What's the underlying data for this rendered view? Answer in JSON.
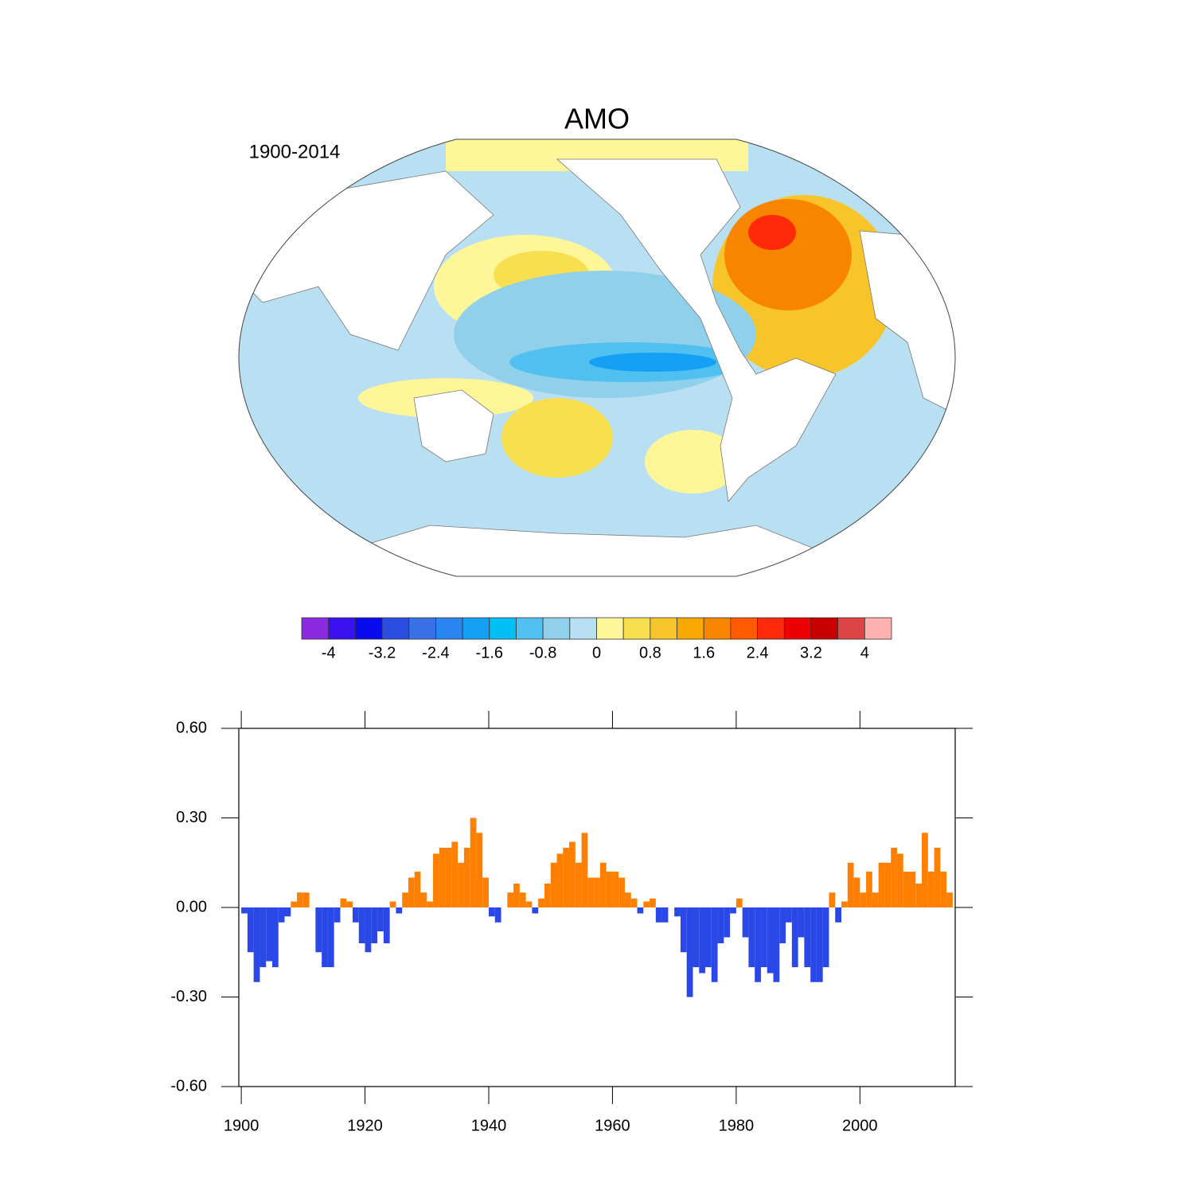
{
  "chart_data": [
    {
      "type": "map",
      "title": "AMO",
      "subtitle": "1900-2014",
      "colorbar": {
        "lim": [
          -4.4,
          4.4
        ],
        "ticks": [
          -4,
          -3.2,
          -2.4,
          -1.6,
          -0.8,
          0,
          0.8,
          1.6,
          2.4,
          3.2,
          4
        ],
        "colors": [
          "#8a2be2",
          "#3a10f0",
          "#0a0aef",
          "#2a4fe0",
          "#3a70e5",
          "#2a85f0",
          "#15a0f5",
          "#00c0f5",
          "#50c0f0",
          "#90d0ea",
          "#b8e0f2",
          "#fff599",
          "#f7df50",
          "#f7c52a",
          "#f8a800",
          "#f78500",
          "#ff5a00",
          "#ff2a0a",
          "#ee0000",
          "#c80000",
          "#dd4444",
          "#ffb0b0"
        ]
      }
    },
    {
      "type": "bar",
      "x": [
        1900,
        1901,
        1902,
        1903,
        1904,
        1905,
        1906,
        1907,
        1908,
        1909,
        1910,
        1911,
        1912,
        1913,
        1914,
        1915,
        1916,
        1917,
        1918,
        1919,
        1920,
        1921,
        1922,
        1923,
        1924,
        1925,
        1926,
        1927,
        1928,
        1929,
        1930,
        1931,
        1932,
        1933,
        1934,
        1935,
        1936,
        1937,
        1938,
        1939,
        1940,
        1941,
        1942,
        1943,
        1944,
        1945,
        1946,
        1947,
        1948,
        1949,
        1950,
        1951,
        1952,
        1953,
        1954,
        1955,
        1956,
        1957,
        1958,
        1959,
        1960,
        1961,
        1962,
        1963,
        1964,
        1965,
        1966,
        1967,
        1968,
        1969,
        1970,
        1971,
        1972,
        1973,
        1974,
        1975,
        1976,
        1977,
        1978,
        1979,
        1980,
        1981,
        1982,
        1983,
        1984,
        1985,
        1986,
        1987,
        1988,
        1989,
        1990,
        1991,
        1992,
        1993,
        1994,
        1995,
        1996,
        1997,
        1998,
        1999,
        2000,
        2001,
        2002,
        2003,
        2004,
        2005,
        2006,
        2007,
        2008,
        2009,
        2010,
        2011,
        2012,
        2013,
        2014
      ],
      "values": [
        -0.02,
        -0.15,
        -0.25,
        -0.2,
        -0.18,
        -0.2,
        -0.05,
        -0.03,
        0.02,
        0.05,
        0.05,
        0.0,
        -0.15,
        -0.2,
        -0.2,
        -0.05,
        0.03,
        0.02,
        -0.05,
        -0.12,
        -0.15,
        -0.12,
        -0.08,
        -0.12,
        0.02,
        -0.02,
        0.05,
        0.1,
        0.12,
        0.05,
        0.02,
        0.18,
        0.2,
        0.2,
        0.22,
        0.15,
        0.2,
        0.3,
        0.25,
        0.1,
        -0.03,
        -0.05,
        0.0,
        0.05,
        0.08,
        0.05,
        0.02,
        -0.02,
        0.03,
        0.08,
        0.15,
        0.18,
        0.2,
        0.22,
        0.15,
        0.25,
        0.1,
        0.1,
        0.15,
        0.12,
        0.12,
        0.1,
        0.05,
        0.03,
        -0.02,
        0.02,
        0.03,
        -0.05,
        -0.05,
        0.0,
        -0.03,
        -0.15,
        -0.3,
        -0.2,
        -0.22,
        -0.2,
        -0.25,
        -0.12,
        -0.1,
        -0.02,
        0.03,
        -0.1,
        -0.2,
        -0.25,
        -0.2,
        -0.22,
        -0.25,
        -0.12,
        -0.05,
        -0.2,
        -0.1,
        -0.2,
        -0.25,
        -0.25,
        -0.2,
        0.05,
        -0.05,
        0.02,
        0.15,
        0.1,
        0.05,
        0.12,
        0.05,
        0.15,
        0.15,
        0.2,
        0.18,
        0.12,
        0.12,
        0.08,
        0.25,
        0.12,
        0.2,
        0.12,
        0.05
      ],
      "positive_color": "#ff8000",
      "negative_color": "#2a48e8",
      "xlim": [
        1899.6,
        2015.4
      ],
      "xticks": [
        1900,
        1920,
        1940,
        1960,
        1980,
        2000
      ],
      "ylim": [
        -0.6,
        0.6
      ],
      "yticks": [
        {
          "value": -0.6,
          "label": "-0.60"
        },
        {
          "value": -0.3,
          "label": "-0.30"
        },
        {
          "value": 0,
          "label": "0.00"
        },
        {
          "value": 0.3,
          "label": "0.30"
        },
        {
          "value": 0.6,
          "label": "0.60"
        }
      ]
    }
  ]
}
